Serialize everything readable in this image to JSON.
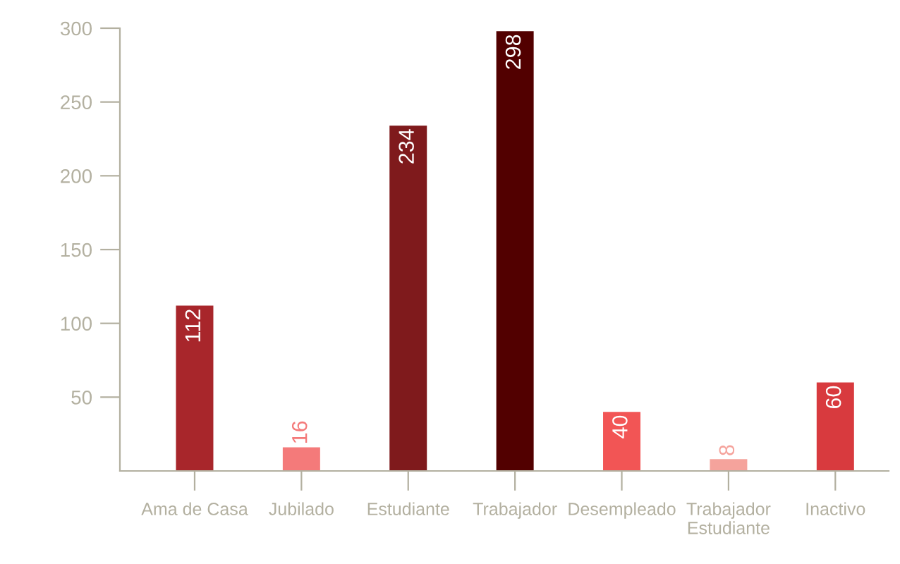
{
  "chart_data": {
    "type": "bar",
    "categories": [
      "Ama de Casa",
      "Jubilado",
      "Estudiante",
      "Trabajador",
      "Desempleado",
      "Trabajador\nEstudiante",
      "Inactivo"
    ],
    "values": [
      112,
      16,
      234,
      298,
      40,
      8,
      60
    ],
    "colors": [
      "#a8262b",
      "#f47a7a",
      "#7f1a1c",
      "#520000",
      "#f25555",
      "#f5a39c",
      "#d83a3e"
    ],
    "ylim": [
      0,
      300
    ],
    "yticks": [
      50,
      100,
      150,
      200,
      250,
      300
    ],
    "data_labels": true,
    "grid": false,
    "legend": false
  }
}
